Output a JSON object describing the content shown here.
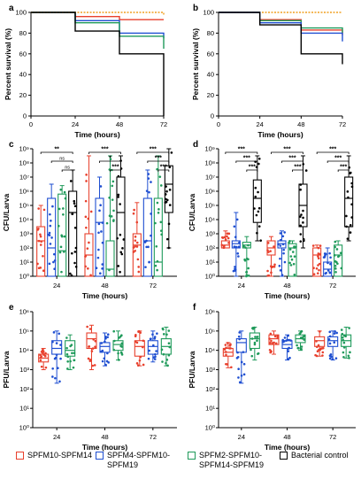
{
  "legend": [
    {
      "label": "SPFM10-SPFM14",
      "color": "#e8402d"
    },
    {
      "label": "SPFM4-SPFM10-\nSPFM19",
      "color": "#1f4fd1"
    },
    {
      "label": "SPFM2-SPFM10-\nSPFM14-SPFM19",
      "color": "#1f9a5a"
    },
    {
      "label": "Bacterial control",
      "color": "#000000"
    }
  ],
  "chart_data": [
    {
      "panel": "a",
      "type": "line",
      "step": true,
      "xlabel": "Time (hours)",
      "ylabel": "Percent survival (%)",
      "xlim": [
        0,
        72
      ],
      "ylim": [
        0,
        100
      ],
      "xticks": [
        "0",
        "24",
        "48",
        "72"
      ],
      "yticks": [
        "0",
        "20",
        "40",
        "60",
        "80",
        "100"
      ],
      "x": [
        0,
        24,
        48,
        72
      ],
      "series": [
        {
          "color": "#e8402d",
          "values": [
            100,
            96,
            93,
            93
          ],
          "dashed": false
        },
        {
          "color": "#1f4fd1",
          "values": [
            100,
            92,
            80,
            75
          ],
          "dashed": false
        },
        {
          "color": "#1f9a5a",
          "values": [
            100,
            90,
            77,
            65
          ],
          "dashed": false
        },
        {
          "color": "#f0a020",
          "values": [
            100,
            100,
            100,
            97
          ],
          "dashed": true
        },
        {
          "color": "#000000",
          "values": [
            100,
            82,
            60,
            0
          ],
          "dashed": false
        }
      ]
    },
    {
      "panel": "b",
      "type": "line",
      "step": true,
      "xlabel": "Time (hours)",
      "ylabel": "Percent survival (%)",
      "xlim": [
        0,
        72
      ],
      "ylim": [
        0,
        100
      ],
      "xticks": [
        "0",
        "24",
        "48",
        "72"
      ],
      "yticks": [
        "0",
        "20",
        "40",
        "60",
        "80",
        "100"
      ],
      "x": [
        0,
        24,
        48,
        72
      ],
      "series": [
        {
          "color": "#f0a020",
          "values": [
            100,
            100,
            100,
            100
          ],
          "dashed": true
        },
        {
          "color": "#e8402d",
          "values": [
            100,
            93,
            83,
            78
          ],
          "dashed": false
        },
        {
          "color": "#1f9a5a",
          "values": [
            100,
            92,
            85,
            80
          ],
          "dashed": false
        },
        {
          "color": "#1f4fd1",
          "values": [
            100,
            90,
            80,
            72
          ],
          "dashed": false
        },
        {
          "color": "#000000",
          "values": [
            100,
            88,
            60,
            50
          ],
          "dashed": false
        }
      ]
    },
    {
      "panel": "c",
      "type": "box",
      "xlabel": "Time (hours)",
      "ylabel": "CFU/Larva",
      "yscale": "log10",
      "ylim_exp": [
        0,
        9
      ],
      "yticks": [
        "10⁰",
        "10¹",
        "10²",
        "10³",
        "10⁴",
        "10⁵",
        "10⁶",
        "10⁷",
        "10⁸",
        "10⁹"
      ],
      "categories": [
        "24",
        "48",
        "72"
      ],
      "groups": [
        [
          {
            "q1": 0,
            "med": 2.5,
            "q3": 3.5,
            "min": 0,
            "max": 5.0
          },
          {
            "q1": 0,
            "med": 2.0,
            "q3": 5.5,
            "min": 0,
            "max": 6.5
          },
          {
            "q1": 0,
            "med": 1.8,
            "q3": 5.8,
            "min": 0,
            "max": 6.4
          },
          {
            "q1": 0,
            "med": 4.5,
            "q3": 6.0,
            "min": 0,
            "max": 7.5
          }
        ],
        [
          {
            "q1": 0,
            "med": 1.5,
            "q3": 3.0,
            "min": 0,
            "max": 8.5
          },
          {
            "q1": 0,
            "med": 3.8,
            "q3": 5.5,
            "min": 0,
            "max": 7.0
          },
          {
            "q1": 0,
            "med": 0.5,
            "q3": 2.5,
            "min": 0,
            "max": 8.5
          },
          {
            "q1": 0,
            "med": 4.5,
            "q3": 7.0,
            "min": 0,
            "max": 8.5
          }
        ],
        [
          {
            "q1": 0,
            "med": 2.2,
            "q3": 3.0,
            "min": 0,
            "max": 5.2
          },
          {
            "q1": 0,
            "med": 2.5,
            "q3": 5.5,
            "min": 0,
            "max": 7.5
          },
          {
            "q1": 0,
            "med": 1.0,
            "q3": 5.5,
            "min": 0,
            "max": 8.5
          },
          {
            "q1": 4.5,
            "med": 6.5,
            "q3": 7.8,
            "min": 2.0,
            "max": 9.0
          }
        ]
      ],
      "significance": [
        {
          "cat": 0,
          "from": 0,
          "to": 3,
          "label": "**",
          "level": 3
        },
        {
          "cat": 0,
          "from": 1,
          "to": 3,
          "label": "ns",
          "level": 2
        },
        {
          "cat": 0,
          "from": 2,
          "to": 3,
          "label": "ns",
          "level": 1
        },
        {
          "cat": 1,
          "from": 0,
          "to": 3,
          "label": "***",
          "level": 3
        },
        {
          "cat": 1,
          "from": 1,
          "to": 3,
          "label": "*",
          "level": 2
        },
        {
          "cat": 1,
          "from": 2,
          "to": 3,
          "label": "***",
          "level": 1
        },
        {
          "cat": 2,
          "from": 0,
          "to": 3,
          "label": "***",
          "level": 3
        },
        {
          "cat": 2,
          "from": 1,
          "to": 3,
          "label": "***",
          "level": 2
        },
        {
          "cat": 2,
          "from": 2,
          "to": 3,
          "label": "***",
          "level": 1
        }
      ]
    },
    {
      "panel": "d",
      "type": "box",
      "xlabel": "Time (hours)",
      "ylabel": "CFU/Larva",
      "yscale": "log10",
      "ylim_exp": [
        0,
        9
      ],
      "yticks": [
        "10⁰",
        "10¹",
        "10²",
        "10³",
        "10⁴",
        "10⁵",
        "10⁶",
        "10⁷",
        "10⁸",
        "10⁹"
      ],
      "categories": [
        "24",
        "48",
        "72"
      ],
      "groups": [
        [
          {
            "q1": 2.0,
            "med": 2.2,
            "q3": 2.5,
            "min": 2.0,
            "max": 3.2
          },
          {
            "q1": 2.0,
            "med": 2.3,
            "q3": 2.5,
            "min": 0,
            "max": 4.5
          },
          {
            "q1": 2.0,
            "med": 2.2,
            "q3": 2.4,
            "min": 0,
            "max": 2.8
          },
          {
            "q1": 3.8,
            "med": 5.5,
            "q3": 6.8,
            "min": 2.5,
            "max": 8.5
          }
        ],
        [
          {
            "q1": 1.5,
            "med": 2.0,
            "q3": 2.5,
            "min": 0,
            "max": 2.8
          },
          {
            "q1": 2.0,
            "med": 2.3,
            "q3": 2.5,
            "min": 0,
            "max": 3.2
          },
          {
            "q1": 0,
            "med": 2.0,
            "q3": 2.3,
            "min": 0,
            "max": 2.5
          },
          {
            "q1": 3.5,
            "med": 5.0,
            "q3": 6.5,
            "min": 2.0,
            "max": 8.5
          }
        ],
        [
          {
            "q1": 0,
            "med": 1.5,
            "q3": 2.0,
            "min": 0,
            "max": 2.2
          },
          {
            "q1": 0,
            "med": 0.5,
            "q3": 1.0,
            "min": 0,
            "max": 2.0
          },
          {
            "q1": 0,
            "med": 1.5,
            "q3": 2.2,
            "min": 0,
            "max": 2.5
          },
          {
            "q1": 3.5,
            "med": 5.5,
            "q3": 7.0,
            "min": 2.5,
            "max": 8.5
          }
        ]
      ],
      "significance": [
        {
          "cat": 0,
          "from": 0,
          "to": 3,
          "label": "***",
          "level": 3
        },
        {
          "cat": 0,
          "from": 1,
          "to": 3,
          "label": "***",
          "level": 2
        },
        {
          "cat": 0,
          "from": 2,
          "to": 3,
          "label": "***",
          "level": 1
        },
        {
          "cat": 1,
          "from": 0,
          "to": 3,
          "label": "***",
          "level": 3
        },
        {
          "cat": 1,
          "from": 1,
          "to": 3,
          "label": "***",
          "level": 2
        },
        {
          "cat": 1,
          "from": 2,
          "to": 3,
          "label": "***",
          "level": 1
        },
        {
          "cat": 2,
          "from": 0,
          "to": 3,
          "label": "***",
          "level": 3
        },
        {
          "cat": 2,
          "from": 1,
          "to": 3,
          "label": "***",
          "level": 2
        },
        {
          "cat": 2,
          "from": 2,
          "to": 3,
          "label": "***",
          "level": 1
        }
      ]
    },
    {
      "panel": "e",
      "type": "box",
      "xlabel": "Time (hours)",
      "ylabel": "PFU/Larva",
      "yscale": "log10",
      "ylim_exp": [
        0,
        6
      ],
      "yticks": [
        "10⁰",
        "10¹",
        "10²",
        "10³",
        "10⁴",
        "10⁵",
        "10⁶"
      ],
      "categories": [
        "24",
        "48",
        "72"
      ],
      "groups": [
        [
          {
            "q1": 3.4,
            "med": 3.6,
            "q3": 3.8,
            "min": 3.0,
            "max": 4.1
          },
          {
            "q1": 3.8,
            "med": 4.1,
            "q3": 4.5,
            "min": 2.3,
            "max": 5.0
          },
          {
            "q1": 3.7,
            "med": 4.0,
            "q3": 4.5,
            "min": 3.0,
            "max": 4.8
          }
        ],
        [
          {
            "q1": 4.1,
            "med": 4.6,
            "q3": 4.9,
            "min": 3.0,
            "max": 5.3
          },
          {
            "q1": 3.9,
            "med": 4.2,
            "q3": 4.4,
            "min": 3.2,
            "max": 4.9
          },
          {
            "q1": 4.0,
            "med": 4.3,
            "q3": 4.5,
            "min": 3.5,
            "max": 5.0
          }
        ],
        [
          {
            "q1": 3.7,
            "med": 4.2,
            "q3": 4.5,
            "min": 3.2,
            "max": 5.0
          },
          {
            "q1": 3.8,
            "med": 4.2,
            "q3": 4.5,
            "min": 3.4,
            "max": 5.0
          },
          {
            "q1": 3.8,
            "med": 4.2,
            "q3": 4.6,
            "min": 3.2,
            "max": 5.2
          }
        ]
      ]
    },
    {
      "panel": "f",
      "type": "box",
      "xlabel": "Time (hours)",
      "ylabel": "PFU/Larva",
      "yscale": "log10",
      "ylim_exp": [
        0,
        6
      ],
      "yticks": [
        "10⁰",
        "10¹",
        "10²",
        "10³",
        "10⁴",
        "10⁵",
        "10⁶"
      ],
      "categories": [
        "24",
        "48",
        "72"
      ],
      "groups": [
        [
          {
            "q1": 3.7,
            "med": 3.9,
            "q3": 4.1,
            "min": 3.1,
            "max": 4.4
          },
          {
            "q1": 3.9,
            "med": 4.4,
            "q3": 4.6,
            "min": 2.3,
            "max": 5.0
          },
          {
            "q1": 4.1,
            "med": 4.6,
            "q3": 4.9,
            "min": 3.5,
            "max": 5.2
          }
        ],
        [
          {
            "q1": 4.3,
            "med": 4.6,
            "q3": 4.8,
            "min": 3.8,
            "max": 5.0
          },
          {
            "q1": 4.1,
            "med": 4.3,
            "q3": 4.5,
            "min": 3.5,
            "max": 4.8
          },
          {
            "q1": 4.4,
            "med": 4.6,
            "q3": 4.8,
            "min": 4.0,
            "max": 5.0
          }
        ],
        [
          {
            "q1": 4.2,
            "med": 4.5,
            "q3": 4.7,
            "min": 3.7,
            "max": 5.0
          },
          {
            "q1": 4.2,
            "med": 4.5,
            "q3": 4.7,
            "min": 3.5,
            "max": 5.0
          },
          {
            "q1": 4.2,
            "med": 4.5,
            "q3": 4.8,
            "min": 3.6,
            "max": 5.2
          }
        ]
      ]
    }
  ]
}
